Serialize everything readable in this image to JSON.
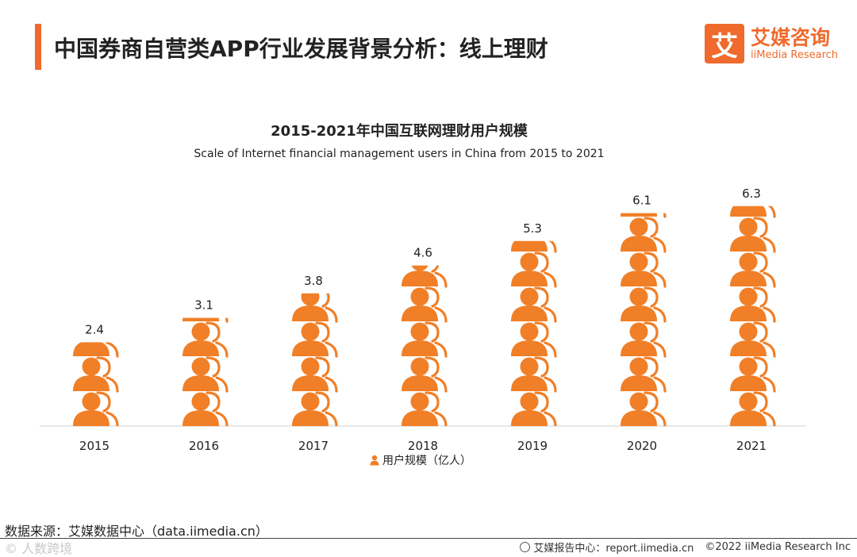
{
  "header": {
    "title": "中国券商自营类APP行业发展背景分析：线上理财"
  },
  "logo": {
    "mark": "艾",
    "name_cn": "艾媒咨询",
    "name_en": "iiMedia Research"
  },
  "chart_data": {
    "type": "bar",
    "style": "pictograph",
    "title": "2015-2021年中国互联网理财用户规模",
    "subtitle": "Scale of Internet financial management users in China from 2015 to 2021",
    "categories": [
      "2015",
      "2016",
      "2017",
      "2018",
      "2019",
      "2020",
      "2021"
    ],
    "series": [
      {
        "name": "用户规模（亿人）",
        "values": [
          2.4,
          3.1,
          3.8,
          4.6,
          5.3,
          6.1,
          6.3
        ]
      }
    ],
    "ylim": [
      0,
      6.5
    ],
    "grid": false,
    "legend_position": "bottom",
    "color": "#f07f27",
    "icon": "person-icon"
  },
  "footer": {
    "source": "数据来源：艾媒数据中心（data.iimedia.cn）",
    "watermark": "© 人数跨境",
    "report_center": "艾媒报告中心：report.iimedia.cn",
    "copyright": "©2022  iiMedia Research  Inc"
  }
}
